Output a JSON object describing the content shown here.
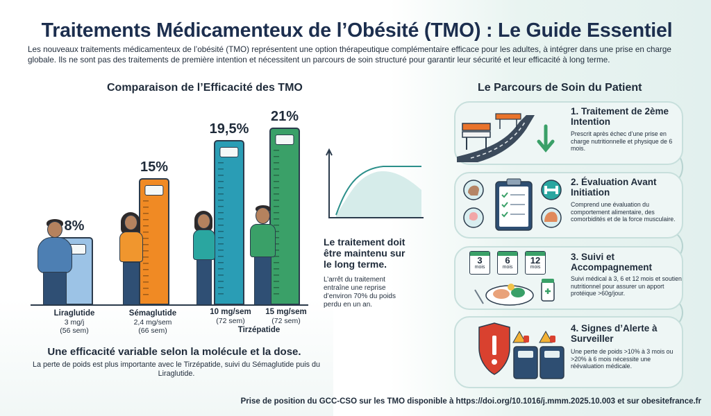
{
  "header": {
    "title": "Traitements Médicamenteux de l’Obésité (TMO) : Le Guide Essentiel",
    "intro": "Les nouveaux traitements médicamenteux de l’obésité (TMO) représentent une option thérapeutique complémentaire efficace pour les adultes, à intégrer dans une prise en charge globale. Ils ne sont pas des traitements de première intention et nécessitent un parcours de soin structuré pour garantir leur sécurité et leur efficacité à long terme."
  },
  "comparison": {
    "title": "Comparaison de l’Efficacité des TMO",
    "chart_data": {
      "type": "bar",
      "categories": [
        "Liraglutide 3 mg/j (56 sem)",
        "Sémaglutide 2,4 mg/sem (66 sem)",
        "Tirzépatide 10 mg/sem (72 sem)",
        "Tirzépatide 15 mg/sem (72 sem)"
      ],
      "values": [
        8,
        15,
        19.5,
        21
      ],
      "value_labels": [
        "8%",
        "15%",
        "19,5%",
        "21%"
      ],
      "colors": [
        "#9cc3e6",
        "#f08a24",
        "#2a9db5",
        "#3aa068"
      ]
    },
    "labels": [
      {
        "name": "Liraglutide",
        "dose": "3 mg/j",
        "duration": "(56 sem)"
      },
      {
        "name": "Sémaglutide",
        "dose": "2,4 mg/sem",
        "duration": "(66 sem)"
      },
      {
        "name": "",
        "dose": "10 mg/sem",
        "duration": "(72 sem)"
      },
      {
        "name": "",
        "dose": "15 mg/sem",
        "duration": "(72 sem)"
      }
    ],
    "group_label": "Tirzépatide",
    "caption_bold": "Une efficacité variable selon la molécule et la dose.",
    "caption": "La perte de poids est plus importante avec le Tirzépatide, suivi du Sémaglutide puis du Liraglutide."
  },
  "maintenance": {
    "title": "Le traitement doit être maintenu sur le long terme.",
    "text": "L’arrêt du traitement entraîne une reprise d’environ 70% du poids perdu en un an."
  },
  "pathway": {
    "title": "Le Parcours de Soin du Patient",
    "steps": [
      {
        "title": "1. Traitement de 2ème Intention",
        "text": "Prescrit après échec d’une prise en charge nutritionnelle et physique de 6 mois."
      },
      {
        "title": "2. Évaluation Avant Initiation",
        "text": "Comprend une évaluation du comportement alimentaire, des comorbidités et de la force musculaire."
      },
      {
        "title": "3. Suivi et Accompagnement",
        "text": "Suivi médical à 3, 6 et 12 mois et soutien nutritionnel pour assurer un apport protéique >60g/jour."
      },
      {
        "title": "4. Signes d’Alerte à Surveiller",
        "text": "Une perte de poids >10% à 3 mois ou >20% à 6 mois nécessite une réévaluation médicale."
      }
    ],
    "calendar": [
      {
        "num": "3",
        "unit": "mois"
      },
      {
        "num": "6",
        "unit": "mois"
      },
      {
        "num": "12",
        "unit": "mois"
      }
    ]
  },
  "footer": {
    "text": "Prise de position du GCC-CSO sur les TMO disponible à https://doi.org/10.1016/j.mmm.2025.10.003 et sur obesitefrance.fr"
  }
}
